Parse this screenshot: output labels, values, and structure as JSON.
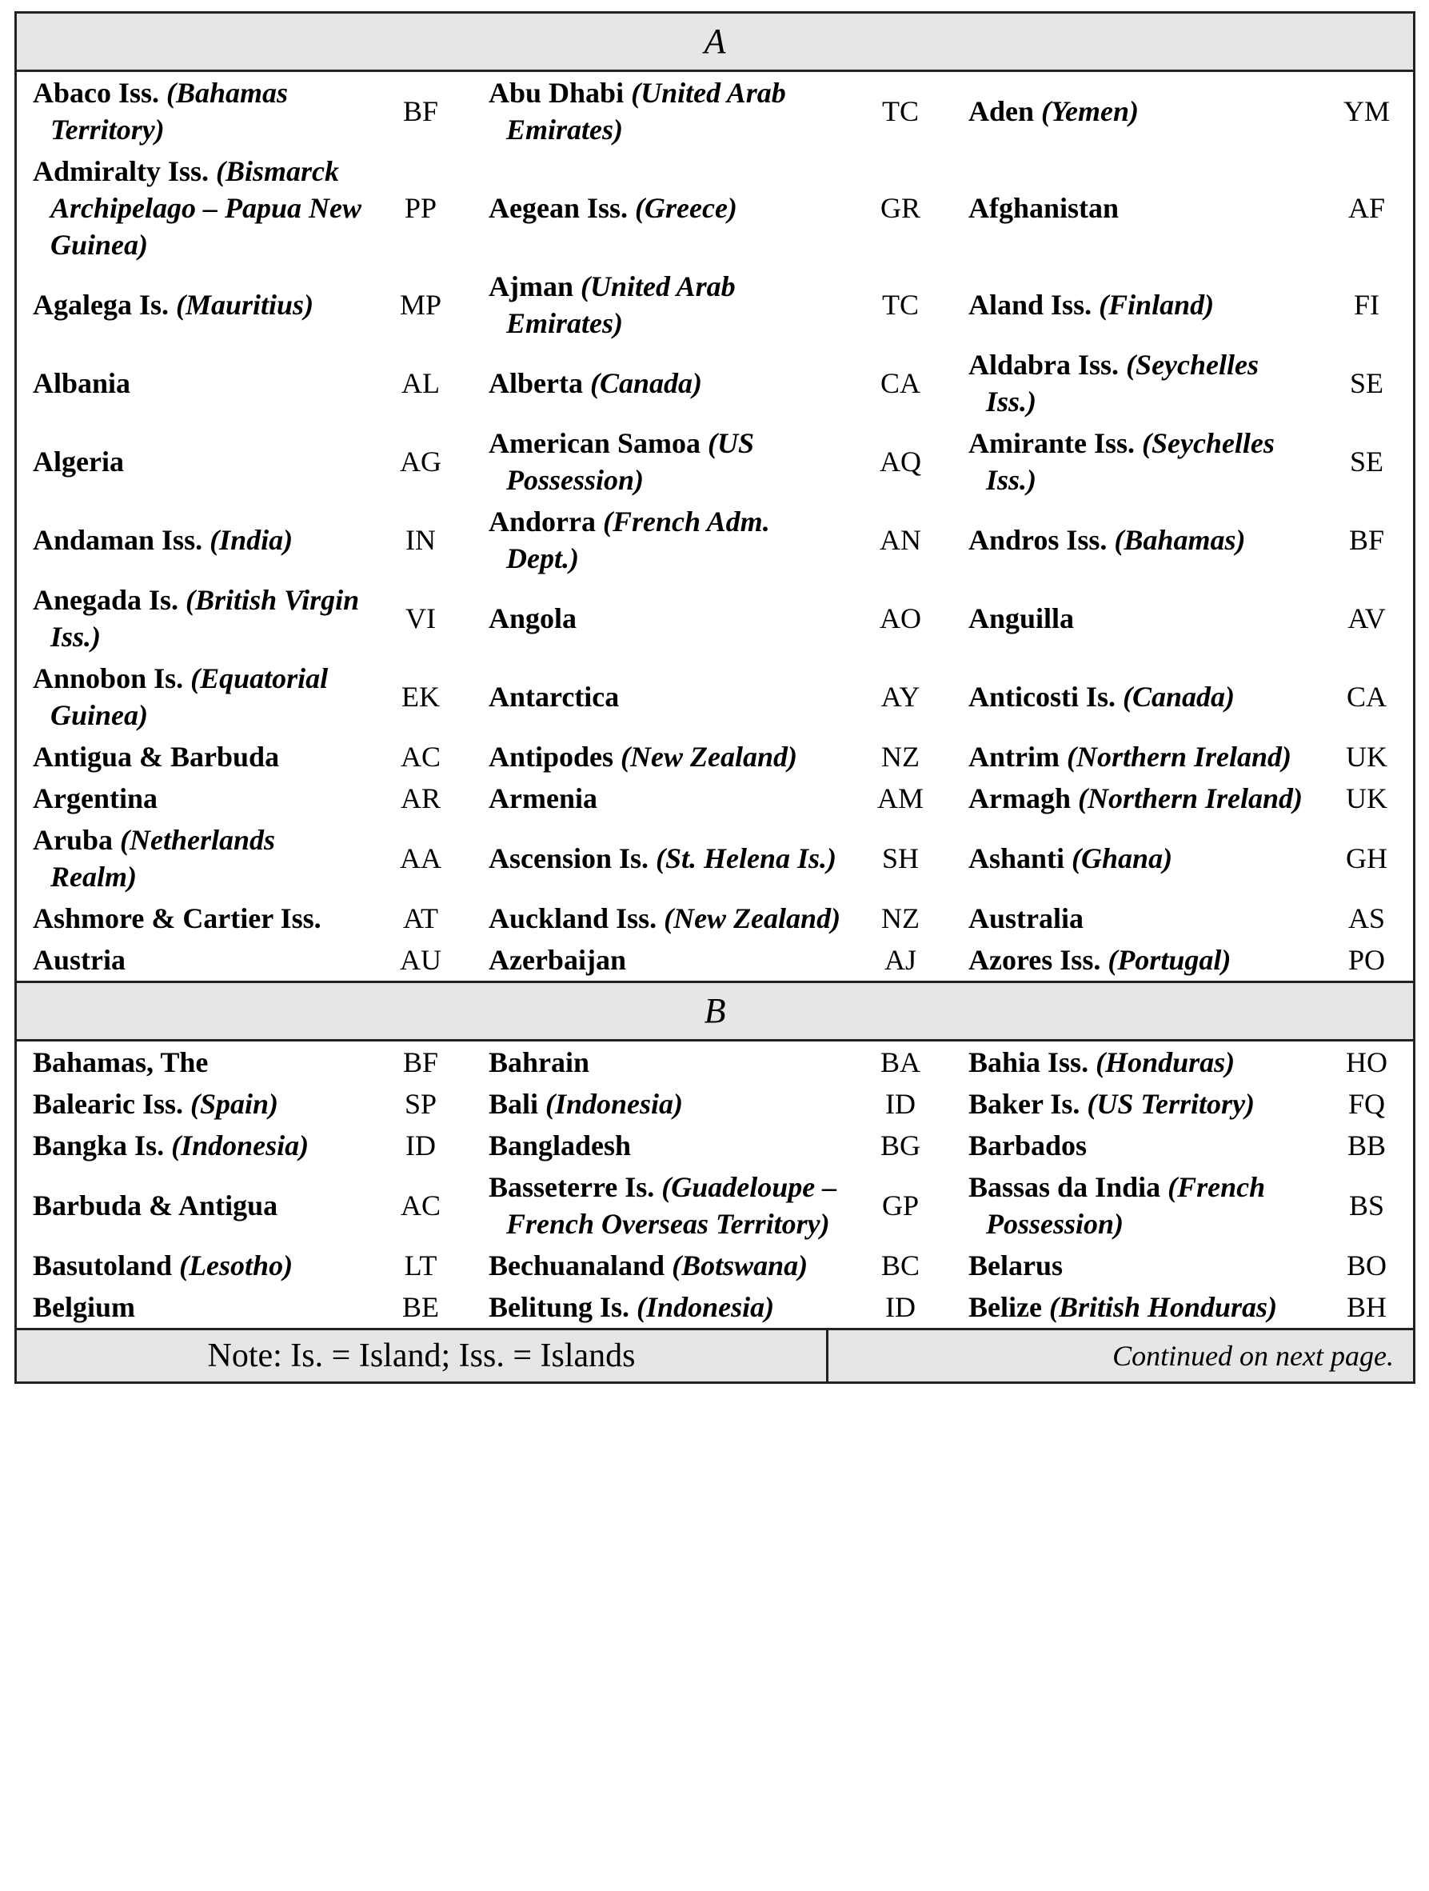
{
  "sections": [
    {
      "letter": "A",
      "rows": [
        [
          {
            "name": "Abaco Iss.",
            "note": "(Bahamas Territory)",
            "code": "BF"
          },
          {
            "name": "Abu Dhabi",
            "note": "(United Arab Emirates)",
            "code": "TC"
          },
          {
            "name": "Aden",
            "note": "(Yemen)",
            "code": "YM"
          }
        ],
        [
          {
            "name": "Admiralty Iss.",
            "note": "(Bismarck Archipelago – Papua New Guinea)",
            "code": "PP"
          },
          {
            "name": "Aegean Iss.",
            "note": "(Greece)",
            "code": "GR"
          },
          {
            "name": "Afghanistan",
            "code": "AF"
          }
        ],
        [
          {
            "name": "Agalega Is.",
            "note": "(Mauritius)",
            "code": "MP"
          },
          {
            "name": "Ajman",
            "note": "(United Arab Emirates)",
            "code": "TC"
          },
          {
            "name": "Aland Iss.",
            "note": "(Finland)",
            "code": "FI"
          }
        ],
        [
          {
            "name": "Albania",
            "code": "AL"
          },
          {
            "name": "Alberta",
            "note": "(Canada)",
            "code": "CA"
          },
          {
            "name": "Aldabra Iss.",
            "note": "(Seychelles Iss.)",
            "code": "SE"
          }
        ],
        [
          {
            "name": "Algeria",
            "code": "AG"
          },
          {
            "name": "American Samoa",
            "note": "(US Possession)",
            "code": "AQ"
          },
          {
            "name": "Amirante Iss.",
            "note": "(Seychelles Iss.)",
            "code": "SE"
          }
        ],
        [
          {
            "name": "Andaman Iss.",
            "note": "(India)",
            "code": "IN"
          },
          {
            "name": "Andorra",
            "note": "(French Adm. Dept.)",
            "code": "AN"
          },
          {
            "name": "Andros Iss.",
            "note": "(Bahamas)",
            "code": "BF"
          }
        ],
        [
          {
            "name": "Anegada Is.",
            "note": "(British Virgin Iss.)",
            "code": "VI"
          },
          {
            "name": "Angola",
            "code": "AO"
          },
          {
            "name": "Anguilla",
            "code": "AV"
          }
        ],
        [
          {
            "name": "Annobon Is.",
            "note": "(Equatorial Guinea)",
            "code": "EK"
          },
          {
            "name": "Antarctica",
            "code": "AY"
          },
          {
            "name": "Anticosti Is.",
            "note": "(Canada)",
            "code": "CA"
          }
        ],
        [
          {
            "name": "Antigua & Barbuda",
            "code": "AC"
          },
          {
            "name": "Antipodes",
            "note": "(New Zealand)",
            "code": "NZ"
          },
          {
            "name": "Antrim",
            "note": "(Northern Ireland)",
            "code": "UK"
          }
        ],
        [
          {
            "name": "Argentina",
            "code": "AR"
          },
          {
            "name": "Armenia",
            "code": "AM"
          },
          {
            "name": "Armagh",
            "note": "(Northern Ireland)",
            "code": "UK"
          }
        ],
        [
          {
            "name": "Aruba",
            "note": "(Netherlands Realm)",
            "code": "AA"
          },
          {
            "name": "Ascension Is.",
            "note": "(St. Helena Is.)",
            "code": "SH"
          },
          {
            "name": "Ashanti",
            "note": "(Ghana)",
            "code": "GH"
          }
        ],
        [
          {
            "name": "Ashmore & Cartier Iss.",
            "code": "AT"
          },
          {
            "name": "Auckland Iss.",
            "note": "(New Zealand)",
            "code": "NZ"
          },
          {
            "name": "Australia",
            "code": "AS"
          }
        ],
        [
          {
            "name": "Austria",
            "code": "AU"
          },
          {
            "name": "Azerbaijan",
            "code": "AJ"
          },
          {
            "name": "Azores Iss.",
            "note": "(Portugal)",
            "code": "PO"
          }
        ]
      ]
    },
    {
      "letter": "B",
      "rows": [
        [
          {
            "name": "Bahamas, The",
            "code": "BF"
          },
          {
            "name": "Bahrain",
            "code": "BA"
          },
          {
            "name": "Bahia Iss.",
            "note": "(Honduras)",
            "code": "HO"
          }
        ],
        [
          {
            "name": "Balearic Iss.",
            "note": "(Spain)",
            "code": "SP"
          },
          {
            "name": "Bali",
            "note": "(Indonesia)",
            "code": "ID"
          },
          {
            "name": "Baker Is.",
            "note": "(US Territory)",
            "code": "FQ"
          }
        ],
        [
          {
            "name": "Bangka Is.",
            "note": "(Indonesia)",
            "code": "ID"
          },
          {
            "name": "Bangladesh",
            "code": "BG"
          },
          {
            "name": "Barbados",
            "code": "BB"
          }
        ],
        [
          {
            "name": "Barbuda & Antigua",
            "code": "AC"
          },
          {
            "name": "Basseterre Is.",
            "note": "(Guadeloupe – French Overseas Territory)",
            "code": "GP"
          },
          {
            "name": "Bassas da India",
            "note": "(French Possession)",
            "code": "BS"
          }
        ],
        [
          {
            "name": "Basutoland",
            "note": "(Lesotho)",
            "code": "LT"
          },
          {
            "name": "Bechuanaland",
            "note": "(Botswana)",
            "code": "BC"
          },
          {
            "name": "Belarus",
            "code": "BO"
          }
        ],
        [
          {
            "name": "Belgium",
            "code": "BE"
          },
          {
            "name": "Belitung Is.",
            "note": "(Indonesia)",
            "code": "ID"
          },
          {
            "name": "Belize",
            "note": "(British Honduras)",
            "code": "BH"
          }
        ]
      ]
    }
  ],
  "footer": {
    "note": "Note: Is. = Island; Iss. = Islands",
    "continued": "Continued on next page."
  }
}
